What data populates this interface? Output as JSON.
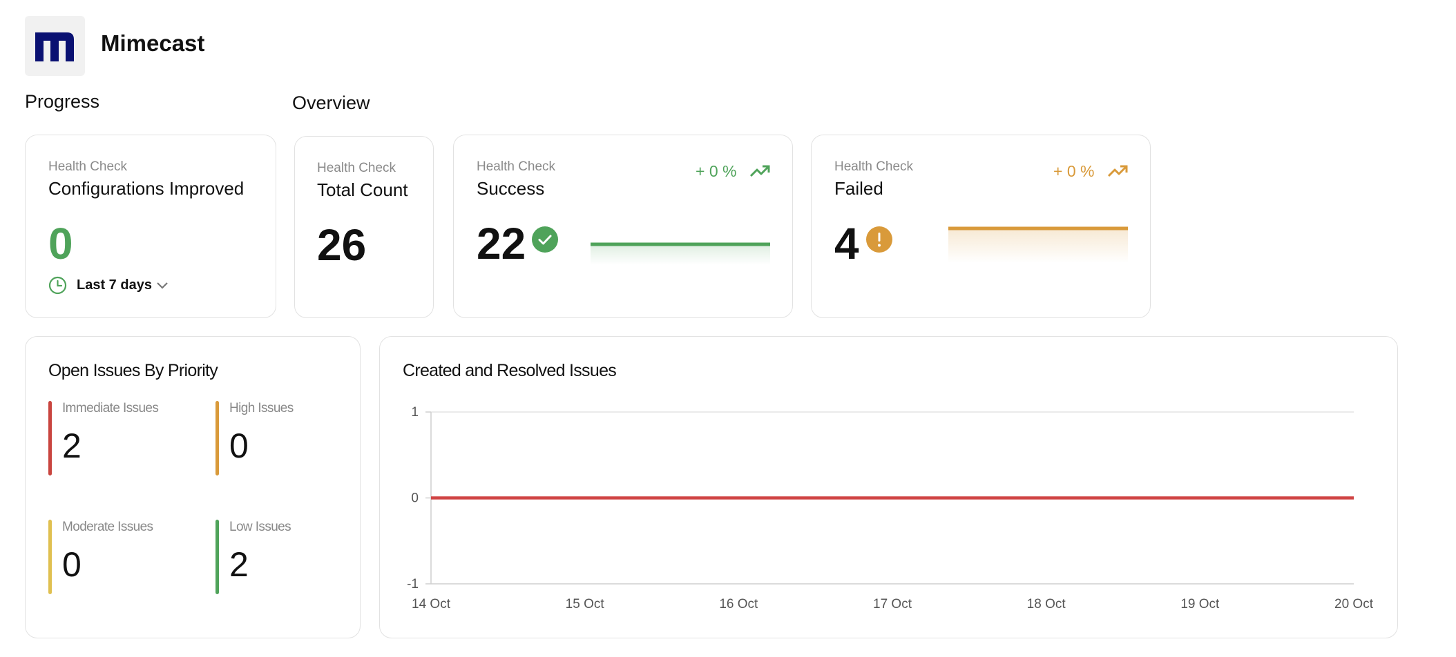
{
  "app": {
    "name": "Mimecast"
  },
  "sections": {
    "progress": "Progress",
    "overview": "Overview"
  },
  "cards": {
    "configurations": {
      "label": "Health Check",
      "title": "Configurations Improved",
      "value": "0",
      "period": "Last 7 days"
    },
    "total": {
      "label": "Health Check",
      "title": "Total Count",
      "value": "26"
    },
    "success": {
      "label": "Health Check",
      "title": "Success",
      "value": "22",
      "change": "+ 0 %"
    },
    "failed": {
      "label": "Health Check",
      "title": "Failed",
      "value": "4",
      "change": "+ 0 %"
    }
  },
  "open_issues": {
    "title": "Open Issues By Priority",
    "items": [
      {
        "label": "Immediate Issues",
        "value": "2",
        "color": "#c9453f"
      },
      {
        "label": "High Issues",
        "value": "0",
        "color": "#d99a3a"
      },
      {
        "label": "Moderate Issues",
        "value": "0",
        "color": "#e0c050"
      },
      {
        "label": "Low Issues",
        "value": "2",
        "color": "#4fa35a"
      }
    ]
  },
  "colors": {
    "brand": "#0a1172",
    "success": "#4fa35a",
    "warning": "#d99a3a",
    "danger": "#d04545"
  },
  "icons": {
    "clock": "clock-icon",
    "chevron": "chevron-down-icon",
    "trend": "trend-up-icon",
    "check": "check-circle-icon",
    "alert": "alert-circle-icon"
  },
  "chart_data": {
    "type": "line",
    "title": "Created and Resolved Issues",
    "x": [
      "14 Oct",
      "15 Oct",
      "16 Oct",
      "17 Oct",
      "18 Oct",
      "19 Oct",
      "20 Oct"
    ],
    "y_ticks": [
      "1",
      "0",
      "-1"
    ],
    "ylim": [
      -1,
      1
    ],
    "series": [
      {
        "values": [
          0,
          0,
          0,
          0,
          0,
          0,
          0
        ],
        "color": "#d04545"
      }
    ],
    "grid": true,
    "legend": "none"
  }
}
